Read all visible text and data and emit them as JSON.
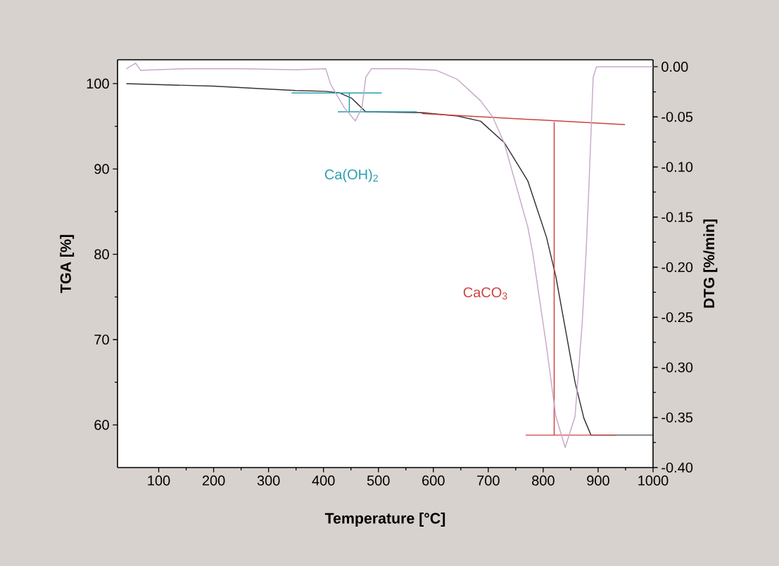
{
  "chart_data": {
    "type": "line",
    "xlabel": "Temperature [°C]",
    "ylabel": "TGA [%]",
    "y2label": "DTG [%/min]",
    "xlim": [
      25,
      1000
    ],
    "ylim": [
      55,
      102.8
    ],
    "y2lim": [
      -0.4,
      0.007
    ],
    "xticks": [
      100,
      200,
      300,
      400,
      500,
      600,
      700,
      800,
      900,
      1000
    ],
    "yticks": [
      60,
      70,
      80,
      90,
      100
    ],
    "y2ticks": [
      {
        "value": 0,
        "label": "0.00"
      },
      {
        "value": -0.05,
        "label": "-0.05"
      },
      {
        "value": -0.1,
        "label": "-0.10"
      },
      {
        "value": -0.15,
        "label": "-0.15"
      },
      {
        "value": -0.2,
        "label": "-0.20"
      },
      {
        "value": -0.25,
        "label": "-0.25"
      },
      {
        "value": -0.3,
        "label": "-0.30"
      },
      {
        "value": -0.35,
        "label": "-0.35"
      },
      {
        "value": -0.4,
        "label": "-0.40"
      }
    ],
    "grid": false,
    "series": [
      {
        "color": "#c9a8cc",
        "axis": "y2",
        "x": [
          41,
          58,
          67,
          150,
          250,
          350,
          404,
          413,
          438,
          458,
          470,
          477,
          487,
          550,
          605,
          644,
          686,
          708,
          729,
          772,
          781,
          806,
          823,
          840,
          858,
          871,
          878,
          883,
          891,
          897,
          950,
          1000
        ],
        "values": [
          -0.002,
          0.0035,
          -0.0035,
          -0.002,
          -0.002,
          -0.003,
          -0.002,
          -0.0175,
          -0.041,
          -0.054,
          -0.041,
          -0.0105,
          -0.002,
          -0.002,
          -0.0035,
          -0.0126,
          -0.034,
          -0.05,
          -0.076,
          -0.16,
          -0.186,
          -0.279,
          -0.349,
          -0.38,
          -0.349,
          -0.256,
          -0.186,
          -0.123,
          -0.0105,
          0.0,
          0.0,
          0.0
        ]
      },
      {
        "color": "#333333",
        "x": [
          41,
          200,
          349,
          404,
          430,
          451,
          477,
          580,
          644,
          686,
          729,
          772,
          806,
          823,
          858,
          874,
          887,
          1000
        ],
        "values": [
          100.0,
          99.7,
          99.2,
          99.1,
          98.9,
          98.3,
          96.7,
          96.6,
          96.2,
          95.6,
          93.1,
          88.6,
          82.0,
          77.4,
          65.0,
          60.8,
          58.8,
          58.8
        ]
      },
      {
        "color": "#2a9db0",
        "x": [
          342,
          506
        ],
        "values": [
          98.9,
          98.9
        ]
      },
      {
        "color": "#2a9db0",
        "x": [
          426,
          570
        ],
        "values": [
          96.7,
          96.7
        ]
      },
      {
        "color": "#2a9db0",
        "x": [
          447,
          447
        ],
        "values": [
          98.9,
          96.7
        ]
      },
      {
        "color": "#d04040",
        "x": [
          579,
          949
        ],
        "values": [
          96.5,
          95.2
        ]
      },
      {
        "color": "#d04040",
        "x": [
          820,
          820
        ],
        "values": [
          95.5,
          58.8
        ]
      },
      {
        "color": "#d04040",
        "x": [
          768,
          932
        ],
        "values": [
          58.8,
          58.8
        ]
      }
    ],
    "annotations": [
      "Ca(OH)$_{2}$",
      "CaCO$_{3}$"
    ]
  }
}
